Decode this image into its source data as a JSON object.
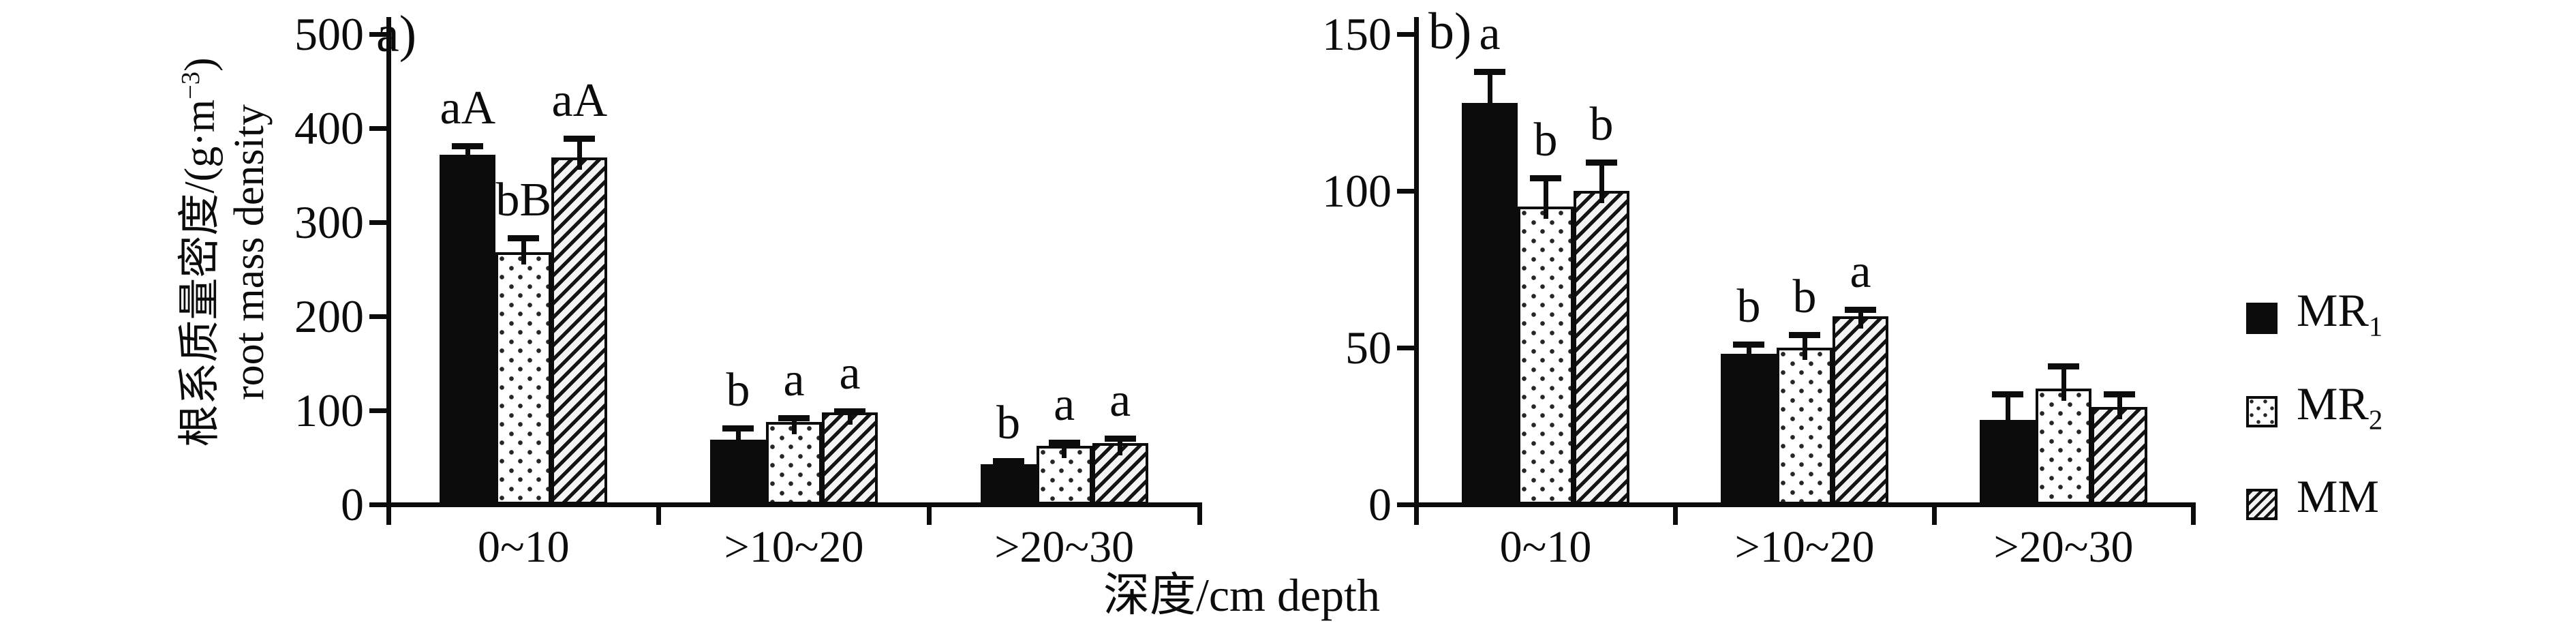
{
  "figure": {
    "x_axis_title": "深度/cm depth",
    "y_axis_title": {
      "zh_prefix": "根系质量密度/(g·m",
      "zh_sup": "−3",
      "zh_suffix": ")",
      "en": "root mass density"
    },
    "legend": [
      {
        "main": "MR",
        "sub": "1",
        "pattern": "solid"
      },
      {
        "main": "MR",
        "sub": "2",
        "pattern": "dots"
      },
      {
        "main": "MM",
        "sub": "",
        "pattern": "hatch"
      }
    ],
    "colors": {
      "ink": "#0c0c0c",
      "background": "#ffffff"
    }
  },
  "chart_data": [
    {
      "type": "bar",
      "panel_label": "a)",
      "categories": [
        "0~10",
        ">10~20",
        ">20~30"
      ],
      "xlabel": "深度/cm depth",
      "ylabel": "根系质量密度/(g·m−3) root mass density",
      "ylim": [
        0,
        500
      ],
      "yticks": [
        0,
        100,
        200,
        300,
        400,
        500
      ],
      "grid": false,
      "legend_position": "right",
      "series": [
        {
          "name": "MR1",
          "values": [
            372,
            69,
            43
          ],
          "errors": [
            12,
            15,
            6
          ],
          "letters": [
            "aA",
            "b",
            "b"
          ]
        },
        {
          "name": "MR2",
          "values": [
            268,
            88,
            62
          ],
          "errors": [
            18,
            7,
            7
          ],
          "letters": [
            "bB",
            "a",
            "a"
          ]
        },
        {
          "name": "MM",
          "values": [
            369,
            98,
            65
          ],
          "errors": [
            23,
            4,
            8
          ],
          "letters": [
            "aA",
            "a",
            "a"
          ]
        }
      ]
    },
    {
      "type": "bar",
      "panel_label": "b)",
      "categories": [
        "0~10",
        ">10~20",
        ">20~30"
      ],
      "xlabel": "深度/cm depth",
      "ylabel": "根系质量密度/(g·m−3) root mass density",
      "ylim": [
        0,
        150
      ],
      "yticks": [
        0,
        50,
        100,
        150
      ],
      "grid": false,
      "legend_position": "right",
      "series": [
        {
          "name": "MR1",
          "values": [
            128,
            48,
            27
          ],
          "errors": [
            11,
            4,
            9
          ],
          "letters": [
            "a",
            "b",
            ""
          ]
        },
        {
          "name": "MR2",
          "values": [
            95,
            50,
            37
          ],
          "errors": [
            10,
            5,
            8
          ],
          "letters": [
            "b",
            "b",
            ""
          ]
        },
        {
          "name": "MM",
          "values": [
            100,
            60,
            31
          ],
          "errors": [
            10,
            3,
            5
          ],
          "letters": [
            "b",
            "a",
            ""
          ]
        }
      ]
    }
  ]
}
